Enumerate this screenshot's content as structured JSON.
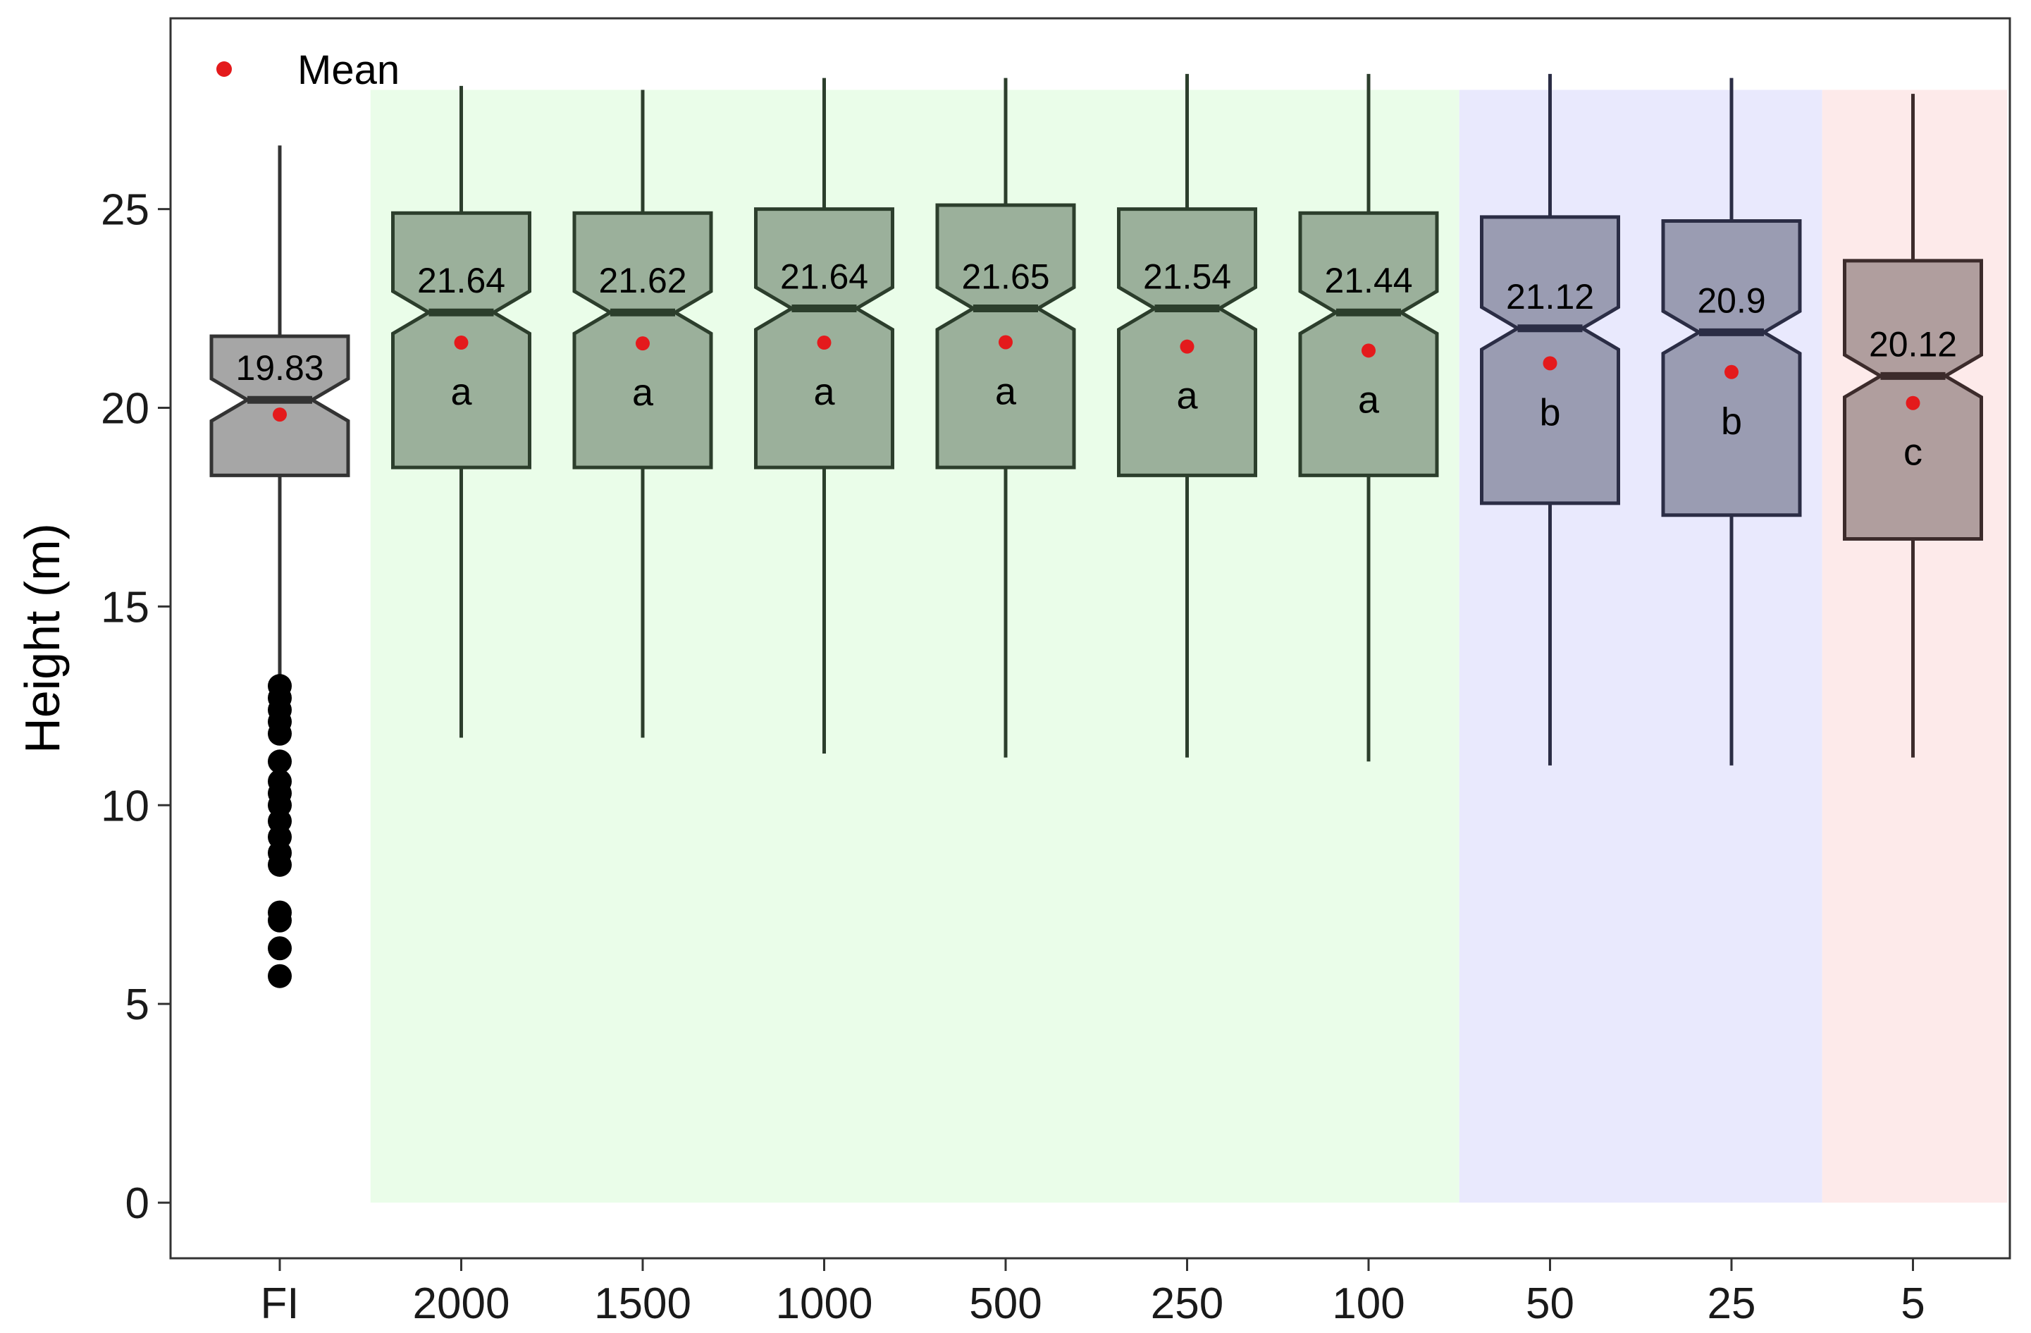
{
  "chart_data": {
    "type": "boxplot",
    "title": "",
    "xlabel": "",
    "ylabel": "Height (m)",
    "ylim": [
      -1.4,
      29.8
    ],
    "yticks": [
      0,
      5,
      10,
      15,
      20,
      25
    ],
    "grid": false,
    "notched": true,
    "legend": {
      "position": "top-left",
      "label": "Mean",
      "color": "#e41a1c"
    },
    "bands": [
      {
        "from": "2000",
        "to": "100",
        "color": "#eafde9"
      },
      {
        "from": "50",
        "to": "25",
        "color": "#e9e9fd"
      },
      {
        "from": "5",
        "to": "5",
        "color": "#fdeaea"
      }
    ],
    "categories": [
      "FI",
      "2000",
      "1500",
      "1000",
      "500",
      "250",
      "100",
      "50",
      "25",
      "5"
    ],
    "boxes": [
      {
        "category": "FI",
        "q1": 18.3,
        "median": 20.2,
        "q3": 21.8,
        "whisker_low": 13.1,
        "whisker_high": 26.6,
        "mean": 19.83,
        "mean_label": "19.83",
        "group": "",
        "fill": "#a6a6a6",
        "stroke": "#333333",
        "outliers": [
          13.0,
          12.7,
          12.4,
          12.1,
          11.8,
          11.1,
          10.6,
          10.3,
          10.0,
          9.6,
          9.2,
          8.8,
          8.5,
          7.3,
          7.1,
          6.4,
          5.7
        ]
      },
      {
        "category": "2000",
        "q1": 18.5,
        "median": 22.4,
        "q3": 24.9,
        "whisker_low": 11.7,
        "whisker_high": 28.1,
        "mean": 21.64,
        "mean_label": "21.64",
        "group": "a",
        "fill": "#9bb09b",
        "stroke": "#2c3e2c",
        "outliers": []
      },
      {
        "category": "1500",
        "q1": 18.5,
        "median": 22.4,
        "q3": 24.9,
        "whisker_low": 11.7,
        "whisker_high": 28.0,
        "mean": 21.62,
        "mean_label": "21.62",
        "group": "a",
        "fill": "#9bb09b",
        "stroke": "#2c3e2c",
        "outliers": []
      },
      {
        "category": "1000",
        "q1": 18.5,
        "median": 22.5,
        "q3": 25.0,
        "whisker_low": 11.3,
        "whisker_high": 28.3,
        "mean": 21.64,
        "mean_label": "21.64",
        "group": "a",
        "fill": "#9bb09b",
        "stroke": "#2c3e2c",
        "outliers": []
      },
      {
        "category": "500",
        "q1": 18.5,
        "median": 22.5,
        "q3": 25.1,
        "whisker_low": 11.2,
        "whisker_high": 28.3,
        "mean": 21.65,
        "mean_label": "21.65",
        "group": "a",
        "fill": "#9bb09b",
        "stroke": "#2c3e2c",
        "outliers": []
      },
      {
        "category": "250",
        "q1": 18.3,
        "median": 22.5,
        "q3": 25.0,
        "whisker_low": 11.2,
        "whisker_high": 28.4,
        "mean": 21.54,
        "mean_label": "21.54",
        "group": "a",
        "fill": "#9bb09b",
        "stroke": "#2c3e2c",
        "outliers": []
      },
      {
        "category": "100",
        "q1": 18.3,
        "median": 22.4,
        "q3": 24.9,
        "whisker_low": 11.1,
        "whisker_high": 28.4,
        "mean": 21.44,
        "mean_label": "21.44",
        "group": "a",
        "fill": "#9bb09b",
        "stroke": "#2c3e2c",
        "outliers": []
      },
      {
        "category": "50",
        "q1": 17.6,
        "median": 22.0,
        "q3": 24.8,
        "whisker_low": 11.0,
        "whisker_high": 28.4,
        "mean": 21.12,
        "mean_label": "21.12",
        "group": "b",
        "fill": "#9a9cb2",
        "stroke": "#2b2d45",
        "outliers": []
      },
      {
        "category": "25",
        "q1": 17.3,
        "median": 21.9,
        "q3": 24.7,
        "whisker_low": 11.0,
        "whisker_high": 28.3,
        "mean": 20.9,
        "mean_label": "20.9",
        "group": "b",
        "fill": "#9a9cb2",
        "stroke": "#2b2d45",
        "outliers": []
      },
      {
        "category": "5",
        "q1": 16.7,
        "median": 20.8,
        "q3": 23.7,
        "whisker_low": 11.2,
        "whisker_high": 27.9,
        "mean": 20.12,
        "mean_label": "20.12",
        "group": "c",
        "fill": "#b09e9e",
        "stroke": "#3c2b2b",
        "outliers": []
      }
    ]
  }
}
